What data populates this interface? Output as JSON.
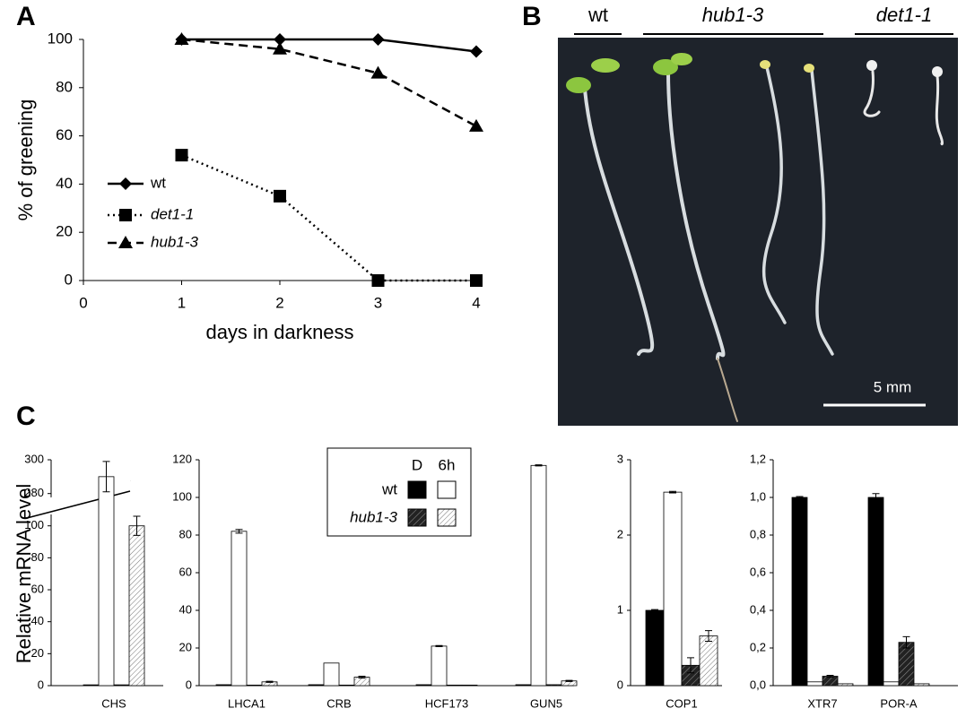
{
  "panel_labels": [
    "A",
    "B",
    "C"
  ],
  "photo": {
    "labels": [
      "wt",
      "hub1-3",
      "det1-1"
    ],
    "scale_bar": "5 mm"
  },
  "chart_data": [
    {
      "type": "line",
      "x_label": "days in darkness",
      "y_label": "% of greening",
      "x": [
        1,
        2,
        3,
        4
      ],
      "xlim": [
        0,
        4
      ],
      "xticks": [
        0,
        1,
        2,
        3,
        4
      ],
      "ylim": [
        0,
        100
      ],
      "yticks": [
        0,
        20,
        40,
        60,
        80,
        100
      ],
      "series": [
        {
          "name": "wt",
          "color": "#000000",
          "marker": "diamond",
          "dash": "solid",
          "values": [
            100,
            100,
            100,
            95
          ]
        },
        {
          "name": "det1-1",
          "color": "#000000",
          "marker": "square",
          "dash": "dotted",
          "values": [
            52,
            35,
            0,
            0
          ]
        },
        {
          "name": "hub1-3",
          "color": "#000000",
          "marker": "triangle",
          "dash": "dashed",
          "values": [
            100,
            96,
            86,
            64
          ]
        }
      ]
    },
    {
      "type": "bar",
      "y_label": "Relative mRNA level",
      "categories": [
        "CHS"
      ],
      "ylim": [
        0,
        300
      ],
      "axis_break": [
        106,
        274
      ],
      "yticks": [
        0,
        20,
        40,
        60,
        80,
        100,
        280,
        300
      ],
      "series": [
        {
          "color": "#000000",
          "pattern": "solid",
          "values": [
            0.5
          ],
          "errors": [
            null
          ]
        },
        {
          "color": "#ffffff",
          "pattern": "solid",
          "values": [
            290
          ],
          "errors": [
            9
          ]
        },
        {
          "color": "#000000",
          "pattern": "dense-hatch",
          "values": [
            0.5
          ],
          "errors": [
            null
          ]
        },
        {
          "color": "#ffffff",
          "pattern": "light-hatch",
          "values": [
            100
          ],
          "errors": [
            6
          ]
        }
      ]
    },
    {
      "type": "bar",
      "categories": [
        "LHCA1",
        "CRB",
        "HCF173",
        "GUN5"
      ],
      "ylim": [
        0,
        120
      ],
      "yticks": [
        0,
        20,
        40,
        60,
        80,
        100,
        120
      ],
      "legend": {
        "columns": [
          "D",
          "6h"
        ],
        "rows": [
          "wt",
          "hub1-3"
        ]
      },
      "series": [
        {
          "color": "#000000",
          "pattern": "solid",
          "values": [
            0.5,
            0.5,
            0.5,
            0.5
          ],
          "errors": [
            null,
            null,
            null,
            null
          ]
        },
        {
          "color": "#ffffff",
          "pattern": "solid",
          "values": [
            82,
            12,
            21,
            117
          ],
          "errors": [
            1,
            null,
            0.3,
            0.3
          ]
        },
        {
          "color": "#000000",
          "pattern": "dense-hatch",
          "values": [
            0.3,
            0.3,
            0.3,
            0.5
          ],
          "errors": [
            null,
            null,
            null,
            null
          ]
        },
        {
          "color": "#ffffff",
          "pattern": "light-hatch",
          "values": [
            2,
            4.5,
            0.3,
            2.5
          ],
          "errors": [
            0.3,
            0.5,
            null,
            0.3
          ]
        }
      ]
    },
    {
      "type": "bar",
      "categories": [
        "COP1"
      ],
      "ylim": [
        0,
        3
      ],
      "yticks": [
        0,
        1,
        2,
        3
      ],
      "series": [
        {
          "color": "#000000",
          "pattern": "solid",
          "values": [
            1.0
          ],
          "errors": [
            0.01
          ]
        },
        {
          "color": "#ffffff",
          "pattern": "solid",
          "values": [
            2.57
          ],
          "errors": [
            0.01
          ]
        },
        {
          "color": "#000000",
          "pattern": "dense-hatch",
          "values": [
            0.27
          ],
          "errors": [
            0.1
          ]
        },
        {
          "color": "#ffffff",
          "pattern": "light-hatch",
          "values": [
            0.66
          ],
          "errors": [
            0.07
          ]
        }
      ]
    },
    {
      "type": "bar",
      "categories": [
        "XTR7",
        "POR-A"
      ],
      "ylim": [
        0,
        1.2
      ],
      "yticks": [
        {
          "value": 0,
          "label": "0,0"
        },
        {
          "value": 0.2,
          "label": "0,2"
        },
        {
          "value": 0.4,
          "label": "0,4"
        },
        {
          "value": 0.6,
          "label": "0,6"
        },
        {
          "value": 0.8,
          "label": "0,8"
        },
        {
          "value": 1.0,
          "label": "1,0"
        },
        {
          "value": 1.2,
          "label": "1,2"
        }
      ],
      "series": [
        {
          "color": "#000000",
          "pattern": "solid",
          "values": [
            1.0,
            1.0
          ],
          "errors": [
            0.005,
            0.02
          ]
        },
        {
          "color": "#ffffff",
          "pattern": "solid",
          "values": [
            0.02,
            0.02
          ],
          "errors": [
            null,
            null
          ]
        },
        {
          "color": "#000000",
          "pattern": "dense-hatch",
          "values": [
            0.05,
            0.23
          ],
          "errors": [
            0.005,
            0.03
          ]
        },
        {
          "color": "#ffffff",
          "pattern": "light-hatch",
          "values": [
            0.01,
            0.01
          ],
          "errors": [
            null,
            null
          ]
        }
      ]
    }
  ]
}
